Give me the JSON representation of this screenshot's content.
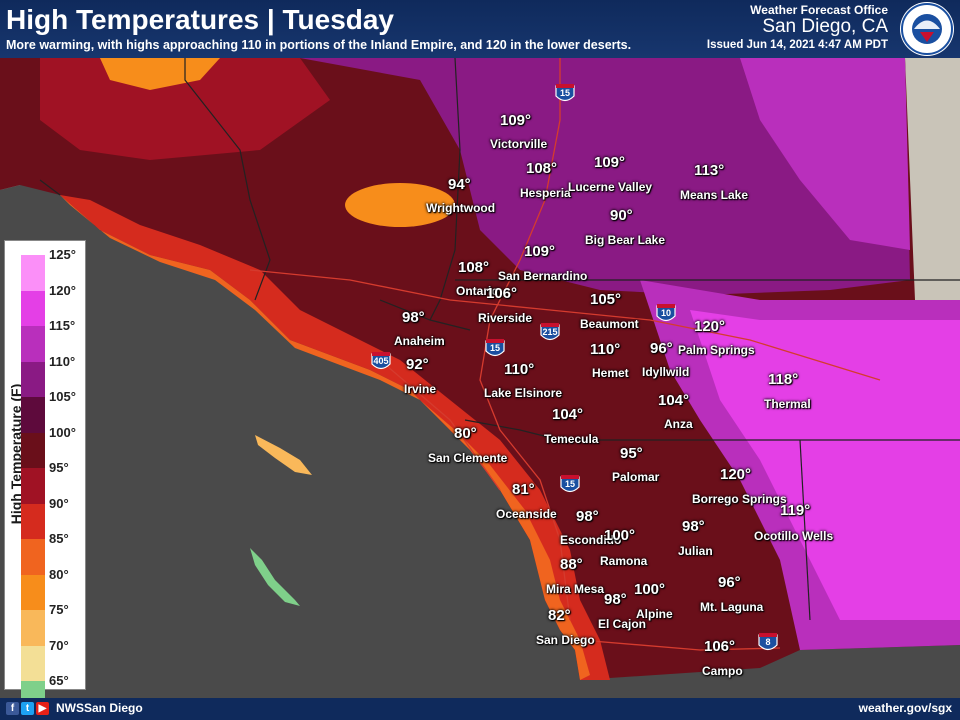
{
  "header": {
    "title": "High Temperatures | Tuesday",
    "subtitle": "More warming, with highs approaching 110 in portions of the Inland Empire, and 120 in the lower deserts.",
    "office_line1": "Weather Forecast Office",
    "office_line2": "San Diego, CA",
    "issued": "Issued Jun 14, 2021 4:47 AM PDT",
    "logo_icon": "nws-logo-icon"
  },
  "legend": {
    "title": "High Temperature (F)",
    "ticks": [
      "125°",
      "120°",
      "115°",
      "110°",
      "105°",
      "100°",
      "95°",
      "90°",
      "85°",
      "80°",
      "75°",
      "70°",
      "65°"
    ],
    "colors": [
      "#fb8ff8",
      "#e43fe6",
      "#b92fbc",
      "#8a1a84",
      "#5e0a3c",
      "#6a0f1a",
      "#a01224",
      "#d52b1e",
      "#f0641f",
      "#f78d1b",
      "#f9b85a",
      "#f3df96",
      "#7fd08a"
    ]
  },
  "highways": [
    "15",
    "10",
    "215",
    "15",
    "405",
    "15",
    "8"
  ],
  "locations": [
    {
      "temp": "109°",
      "name": "Victorville"
    },
    {
      "temp": "108°",
      "name": "Hesperia"
    },
    {
      "temp": "109°",
      "name": "Lucerne Valley"
    },
    {
      "temp": "113°",
      "name": "Means Lake"
    },
    {
      "temp": "94°",
      "name": "Wrightwood"
    },
    {
      "temp": "90°",
      "name": "Big Bear Lake"
    },
    {
      "temp": "109°",
      "name": "San Bernardino"
    },
    {
      "temp": "108°",
      "name": "Ontario"
    },
    {
      "temp": "106°",
      "name": "Riverside"
    },
    {
      "temp": "105°",
      "name": "Beaumont"
    },
    {
      "temp": "120°",
      "name": "Palm Springs"
    },
    {
      "temp": "98°",
      "name": "Anaheim"
    },
    {
      "temp": "92°",
      "name": "Irvine"
    },
    {
      "temp": "110°",
      "name": "Hemet"
    },
    {
      "temp": "96°",
      "name": "Idyllwild"
    },
    {
      "temp": "110°",
      "name": "Lake Elsinore"
    },
    {
      "temp": "118°",
      "name": "Thermal"
    },
    {
      "temp": "104°",
      "name": "Temecula"
    },
    {
      "temp": "104°",
      "name": "Anza"
    },
    {
      "temp": "80°",
      "name": "San Clemente"
    },
    {
      "temp": "95°",
      "name": "Palomar"
    },
    {
      "temp": "120°",
      "name": "Borrego Springs"
    },
    {
      "temp": "81°",
      "name": "Oceanside"
    },
    {
      "temp": "98°",
      "name": "Escondido"
    },
    {
      "temp": "100°",
      "name": "Ramona"
    },
    {
      "temp": "98°",
      "name": "Julian"
    },
    {
      "temp": "119°",
      "name": "Ocotillo Wells"
    },
    {
      "temp": "88°",
      "name": "Mira Mesa"
    },
    {
      "temp": "100°",
      "name": "Alpine"
    },
    {
      "temp": "98°",
      "name": "El Cajon"
    },
    {
      "temp": "96°",
      "name": "Mt. Laguna"
    },
    {
      "temp": "82°",
      "name": "San Diego"
    },
    {
      "temp": "106°",
      "name": "Campo"
    }
  ],
  "footer": {
    "handle": "NWSSan Diego",
    "url": "weather.gov/sgx",
    "social_icons": [
      "facebook-icon",
      "twitter-icon",
      "youtube-icon"
    ]
  }
}
